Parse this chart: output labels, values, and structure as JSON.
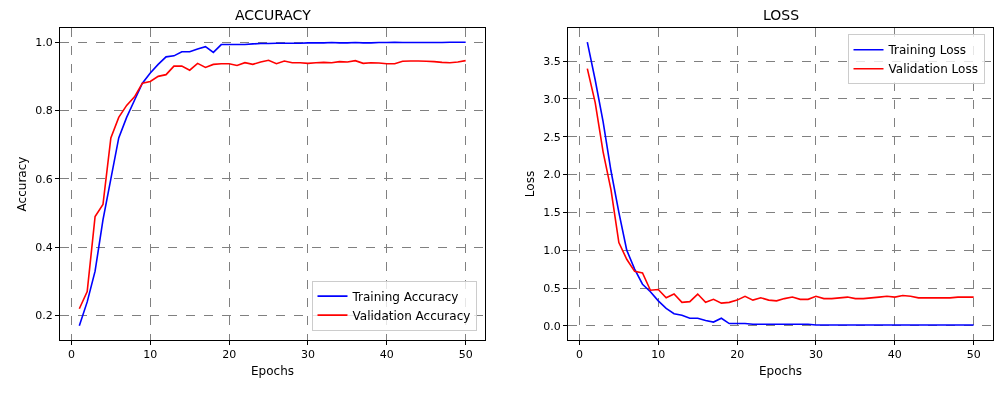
{
  "chart_data": [
    {
      "type": "line",
      "title": "ACCURACY",
      "xlabel": "Epochs",
      "ylabel": "Accuracy",
      "x": [
        1,
        2,
        3,
        4,
        5,
        6,
        7,
        8,
        9,
        10,
        11,
        12,
        13,
        14,
        15,
        16,
        17,
        18,
        19,
        20,
        21,
        22,
        23,
        24,
        25,
        26,
        27,
        28,
        29,
        30,
        31,
        32,
        33,
        34,
        35,
        36,
        37,
        38,
        39,
        40,
        41,
        42,
        43,
        44,
        45,
        46,
        47,
        48,
        49,
        50
      ],
      "series": [
        {
          "name": "Training Accuracy",
          "color": "#0000ff",
          "values": [
            0.17,
            0.24,
            0.33,
            0.48,
            0.6,
            0.72,
            0.78,
            0.83,
            0.88,
            0.91,
            0.935,
            0.957,
            0.96,
            0.972,
            0.972,
            0.98,
            0.987,
            0.97,
            0.993,
            0.993,
            0.993,
            0.993,
            0.995,
            0.996,
            0.996,
            0.997,
            0.997,
            0.997,
            0.997,
            0.998,
            0.998,
            0.998,
            0.999,
            0.998,
            0.998,
            0.999,
            0.998,
            0.998,
            0.999,
            0.999,
            1.0,
            0.999,
            0.999,
            0.999,
            0.999,
            0.999,
            0.999,
            1.0,
            1.0,
            1.0
          ]
        },
        {
          "name": "Validation Accuracy",
          "color": "#ff0000",
          "values": [
            0.22,
            0.27,
            0.49,
            0.525,
            0.72,
            0.78,
            0.815,
            0.84,
            0.88,
            0.885,
            0.9,
            0.905,
            0.93,
            0.93,
            0.918,
            0.938,
            0.926,
            0.935,
            0.937,
            0.937,
            0.932,
            0.94,
            0.935,
            0.942,
            0.947,
            0.937,
            0.945,
            0.94,
            0.94,
            0.938,
            0.94,
            0.941,
            0.94,
            0.943,
            0.942,
            0.946,
            0.938,
            0.94,
            0.939,
            0.937,
            0.937,
            0.944,
            0.945,
            0.945,
            0.944,
            0.943,
            0.941,
            0.94,
            0.942,
            0.946
          ]
        }
      ],
      "xlim": [
        -1.45,
        52.45
      ],
      "ylim": [
        0.1285,
        1.0415
      ],
      "xticks": [
        0,
        10,
        20,
        30,
        40,
        50
      ],
      "yticks": [
        0.2,
        0.4,
        0.6,
        0.8,
        {
          "value": 1.0,
          "label": "1.0"
        }
      ],
      "grid": true,
      "legend": "bottom right"
    },
    {
      "type": "line",
      "title": "LOSS",
      "xlabel": "Epochs",
      "ylabel": "Loss",
      "x": [
        1,
        2,
        3,
        4,
        5,
        6,
        7,
        8,
        9,
        10,
        11,
        12,
        13,
        14,
        15,
        16,
        17,
        18,
        19,
        20,
        21,
        22,
        23,
        24,
        25,
        26,
        27,
        28,
        29,
        30,
        31,
        32,
        33,
        34,
        35,
        36,
        37,
        38,
        39,
        40,
        41,
        42,
        43,
        44,
        45,
        46,
        47,
        48,
        49,
        50
      ],
      "series": [
        {
          "name": "Training Loss",
          "color": "#0000ff",
          "values": [
            3.75,
            3.25,
            2.7,
            2.05,
            1.5,
            1.0,
            0.75,
            0.55,
            0.45,
            0.33,
            0.23,
            0.16,
            0.14,
            0.1,
            0.1,
            0.07,
            0.05,
            0.1,
            0.03,
            0.03,
            0.03,
            0.02,
            0.02,
            0.02,
            0.02,
            0.02,
            0.02,
            0.02,
            0.02,
            0.01,
            0.01,
            0.01,
            0.01,
            0.01,
            0.01,
            0.01,
            0.01,
            0.01,
            0.01,
            0.01,
            0.01,
            0.01,
            0.01,
            0.01,
            0.01,
            0.01,
            0.01,
            0.01,
            0.01,
            0.01
          ]
        },
        {
          "name": "Validation Loss",
          "color": "#ff0000",
          "values": [
            3.4,
            2.95,
            2.3,
            1.8,
            1.1,
            0.88,
            0.72,
            0.7,
            0.47,
            0.48,
            0.37,
            0.42,
            0.31,
            0.32,
            0.42,
            0.31,
            0.35,
            0.3,
            0.31,
            0.34,
            0.39,
            0.34,
            0.37,
            0.34,
            0.33,
            0.36,
            0.38,
            0.35,
            0.35,
            0.39,
            0.36,
            0.36,
            0.37,
            0.38,
            0.36,
            0.36,
            0.37,
            0.38,
            0.39,
            0.38,
            0.4,
            0.39,
            0.37,
            0.37,
            0.37,
            0.37,
            0.37,
            0.38,
            0.38,
            0.38
          ]
        }
      ],
      "xlim": [
        -1.45,
        52.45
      ],
      "ylim": [
        -0.1875,
        3.9375
      ],
      "xticks": [
        0,
        10,
        20,
        30,
        40,
        50
      ],
      "yticks": [
        {
          "value": 0,
          "label": "0.0"
        },
        0.5,
        {
          "value": 1,
          "label": "1.0"
        },
        1.5,
        {
          "value": 2,
          "label": "2.0"
        },
        2.5,
        {
          "value": 3,
          "label": "3.0"
        },
        3.5
      ],
      "grid": true,
      "legend": "top right"
    }
  ]
}
